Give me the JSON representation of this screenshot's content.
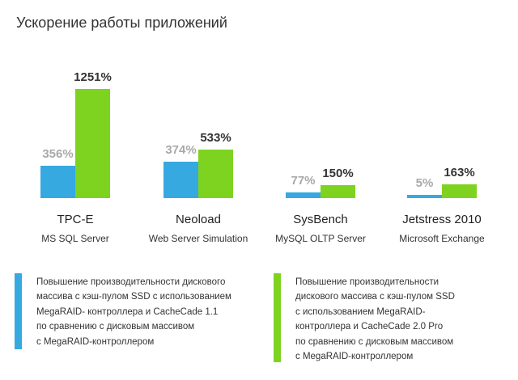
{
  "chart_data": {
    "type": "bar",
    "title": "Ускорение работы приложений",
    "categories": [
      {
        "name": "TPC-E",
        "sub": "MS SQL Server"
      },
      {
        "name": "Neoload",
        "sub": "Web Server Simulation"
      },
      {
        "name": "SysBench",
        "sub": "MySQL OLTP Server"
      },
      {
        "name": "Jetstress 2010",
        "sub": "Microsoft Exchange"
      }
    ],
    "series": [
      {
        "values": [
          356,
          374,
          77,
          5
        ],
        "labels": [
          "356%",
          "374%",
          "77%",
          "5%"
        ],
        "color": "#36a9e1"
      },
      {
        "values": [
          1251,
          533,
          150,
          163
        ],
        "labels": [
          "1251%",
          "533%",
          "150%",
          "163%"
        ],
        "color": "#7ed321"
      }
    ],
    "ylim": [
      0,
      1251
    ],
    "grid": false
  },
  "legend": {
    "blue_text": "Повышение производительности дискового\nмассива с кэш-пулом SSD с использованием\nMegaRAID- контроллера и CacheCade 1.1\nпо сравнению с дисковым массивом\nс MegaRAID-контроллером",
    "green_text": "Повышение производительности\nдискового массива с кэш-пулом SSD\nс использованием MegaRAID-\nконтроллера и CacheCade 2.0 Pro\nпо сравнению с дисковым массивом\nс MegaRAID-контроллером"
  }
}
